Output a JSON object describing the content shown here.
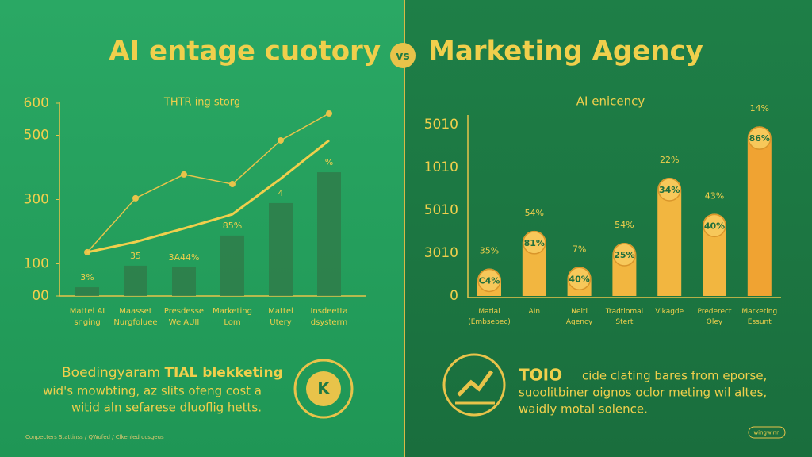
{
  "title": {
    "left": "AI entage cuotory",
    "vs": "vs",
    "right": "Marketing Agency"
  },
  "chart_data": [
    {
      "type": "combo",
      "title": "THTR ing storg",
      "categories": [
        "Mattel AI\nsnging",
        "Maasset\nNurgfoluee",
        "Presdesse\nWe AUII",
        "Marketing\nLom",
        "Mattel\nUtery",
        "Insdeetta\ndsysterm"
      ],
      "values": [
        27,
        94,
        89,
        188,
        289,
        385
      ],
      "value_labels": [
        "3%",
        "35",
        "3A44%",
        "85%",
        "4",
        "%"
      ],
      "color": "#2f7d4a",
      "lines": [
        {
          "color": "#e8c34a",
          "values": [
            136,
            304,
            378,
            348,
            484,
            568
          ]
        },
        {
          "color": "#f0cf4c",
          "values": [
            136,
            168,
            210,
            254,
            365,
            484
          ]
        }
      ],
      "ylim": [
        0,
        600
      ],
      "yticks": [
        {
          "value": 0,
          "label": "00"
        },
        100,
        300,
        500,
        600
      ]
    },
    {
      "type": "bar",
      "title": "AI enicency",
      "categories": [
        "Matial\n(Embsebec)",
        "AIn",
        "Nelti\nAgency",
        "Tradtiomal\nStert",
        "Vikagde",
        "Prederect\nOley",
        "Marketing\nEssunt"
      ],
      "values": [
        16,
        38,
        17,
        31,
        69,
        48,
        99
      ],
      "inner_labels": [
        "C4%",
        "81%",
        "40%",
        "25%",
        "34%",
        "40%",
        "86%"
      ],
      "top_labels": [
        "35%",
        "54%",
        "7%",
        "54%",
        "22%",
        "43%",
        "14%"
      ],
      "color": "#f2b640",
      "ylim": [
        0,
        100
      ],
      "y_axis_labels": [
        "0",
        "3010",
        "5010",
        "1010",
        "5010"
      ]
    }
  ],
  "notes": {
    "left": {
      "heading": [
        "Boedingyaram",
        "TIAL blekketing"
      ],
      "lines": [
        "wid's mowbting, az slits ofeng cost a",
        "witid aln sefarese dluoflig hetts."
      ]
    },
    "right": {
      "heading": "TOIO",
      "lines": [
        "cide clating bares from eporse,",
        "suoolitbiner oignos oclor meting wil altes,",
        "waidly motal solence."
      ]
    },
    "footer": "Conpecters Stattinss / QWofed / Clkenled ocsgeus",
    "badge": "wingwinn"
  }
}
